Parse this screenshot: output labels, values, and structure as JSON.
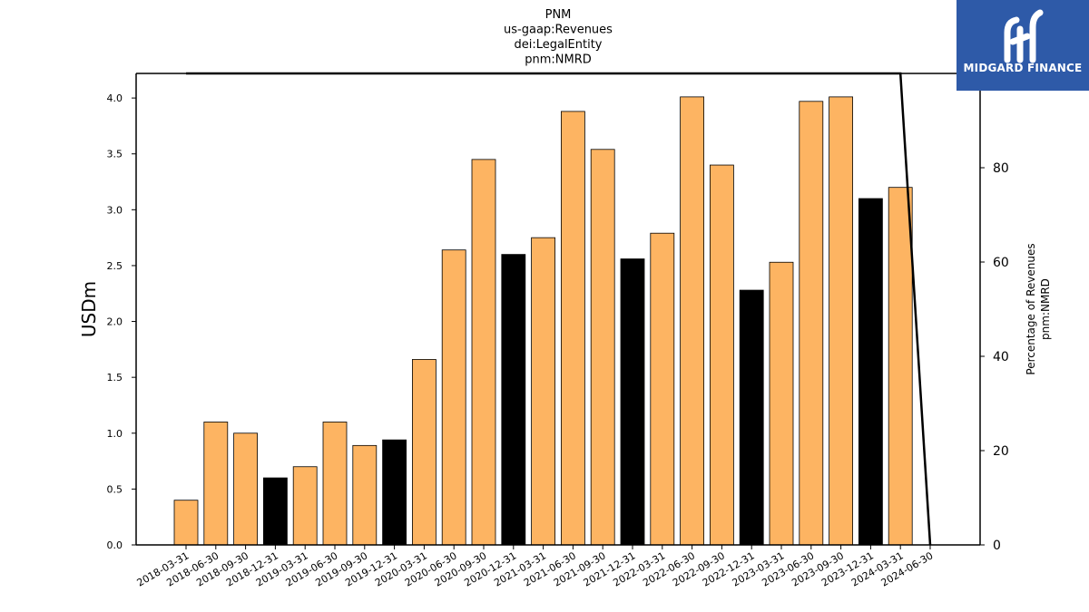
{
  "chart_data": {
    "type": "bar",
    "title_lines": [
      "PNM",
      "us-gaap:Revenues",
      "dei:LegalEntity",
      "pnm:NMRD"
    ],
    "ylabel": "USDm",
    "ylabel_right": [
      "Percentage of Revenues",
      "pnm:NMRD"
    ],
    "ylim": [
      0,
      4.22
    ],
    "yticks": [
      "0.0",
      "0.5",
      "1.0",
      "1.5",
      "2.0",
      "2.5",
      "3.0",
      "3.5",
      "4.0"
    ],
    "ylim_right": [
      0,
      100
    ],
    "yticks_right": [
      "0",
      "20",
      "40",
      "60",
      "80"
    ],
    "categories": [
      "2018-03-31",
      "2018-06-30",
      "2018-09-30",
      "2018-12-31",
      "2019-03-31",
      "2019-06-30",
      "2019-09-30",
      "2019-12-31",
      "2020-03-31",
      "2020-06-30",
      "2020-09-30",
      "2020-12-31",
      "2021-03-31",
      "2021-06-30",
      "2021-09-30",
      "2021-12-31",
      "2022-03-31",
      "2022-06-30",
      "2022-09-30",
      "2022-12-31",
      "2023-03-31",
      "2023-06-30",
      "2023-09-30",
      "2023-12-31",
      "2024-03-31",
      "2024-06-30"
    ],
    "values": [
      0.4,
      1.1,
      1.0,
      0.6,
      0.7,
      1.1,
      0.89,
      0.94,
      1.66,
      2.64,
      3.45,
      2.6,
      2.75,
      3.88,
      3.54,
      2.56,
      2.79,
      4.01,
      3.4,
      2.28,
      2.53,
      3.97,
      4.01,
      3.1,
      3.2,
      null
    ],
    "bar_colors": [
      "#fdb462",
      "#fdb462",
      "#fdb462",
      "#000000",
      "#fdb462",
      "#fdb462",
      "#fdb462",
      "#000000",
      "#fdb462",
      "#fdb462",
      "#fdb462",
      "#000000",
      "#fdb462",
      "#fdb462",
      "#fdb462",
      "#000000",
      "#fdb462",
      "#fdb462",
      "#fdb462",
      "#000000",
      "#fdb462",
      "#fdb462",
      "#fdb462",
      "#000000",
      "#fdb462",
      null
    ],
    "line_series": {
      "x": [
        "2018-03-31",
        "2024-03-31",
        "2024-06-30"
      ],
      "y": [
        100,
        100,
        0
      ],
      "color": "#000000"
    },
    "grid": false
  },
  "logo": {
    "text": "MIDGARD FINANCE",
    "bg_color": "#2e5aa8",
    "fg_color": "#ffffff"
  }
}
